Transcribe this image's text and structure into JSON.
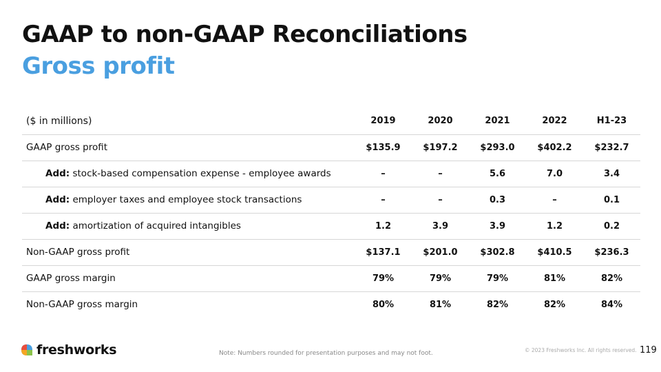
{
  "slide": {
    "title": "GAAP to non-GAAP Reconciliations",
    "subtitle": "Gross profit",
    "accent_color": "#4a9fe0"
  },
  "table": {
    "unit_label": "($ in millions)",
    "columns": [
      "2019",
      "2020",
      "2021",
      "2022",
      "H1-23"
    ],
    "rows": [
      {
        "prefix": "",
        "label": "GAAP gross profit",
        "values": [
          "$135.9",
          "$197.2",
          "$293.0",
          "$402.2",
          "$232.7"
        ]
      },
      {
        "prefix": "Add:",
        "label": " stock-based compensation expense - employee awards",
        "values": [
          "–",
          "–",
          "5.6",
          "7.0",
          "3.4"
        ]
      },
      {
        "prefix": "Add:",
        "label": " employer taxes and employee stock transactions",
        "values": [
          "–",
          "–",
          "0.3",
          "–",
          "0.1"
        ]
      },
      {
        "prefix": "Add:",
        "label": " amortization of acquired intangibles",
        "values": [
          "1.2",
          "3.9",
          "3.9",
          "1.2",
          "0.2"
        ]
      },
      {
        "prefix": "",
        "label": "Non-GAAP gross profit",
        "values": [
          "$137.1",
          "$201.0",
          "$302.8",
          "$410.5",
          "$236.3"
        ]
      },
      {
        "prefix": "",
        "label": "GAAP gross margin",
        "values": [
          "79%",
          "79%",
          "79%",
          "81%",
          "82%"
        ]
      },
      {
        "prefix": "",
        "label": "Non-GAAP gross margin",
        "values": [
          "80%",
          "81%",
          "82%",
          "82%",
          "84%"
        ]
      }
    ]
  },
  "footer": {
    "logo_text": "freshworks",
    "note": "Note: Numbers rounded for presentation purposes and may not foot.",
    "copyright": "© 2023 Freshworks Inc. All rights reserved.",
    "page_number": "119"
  }
}
